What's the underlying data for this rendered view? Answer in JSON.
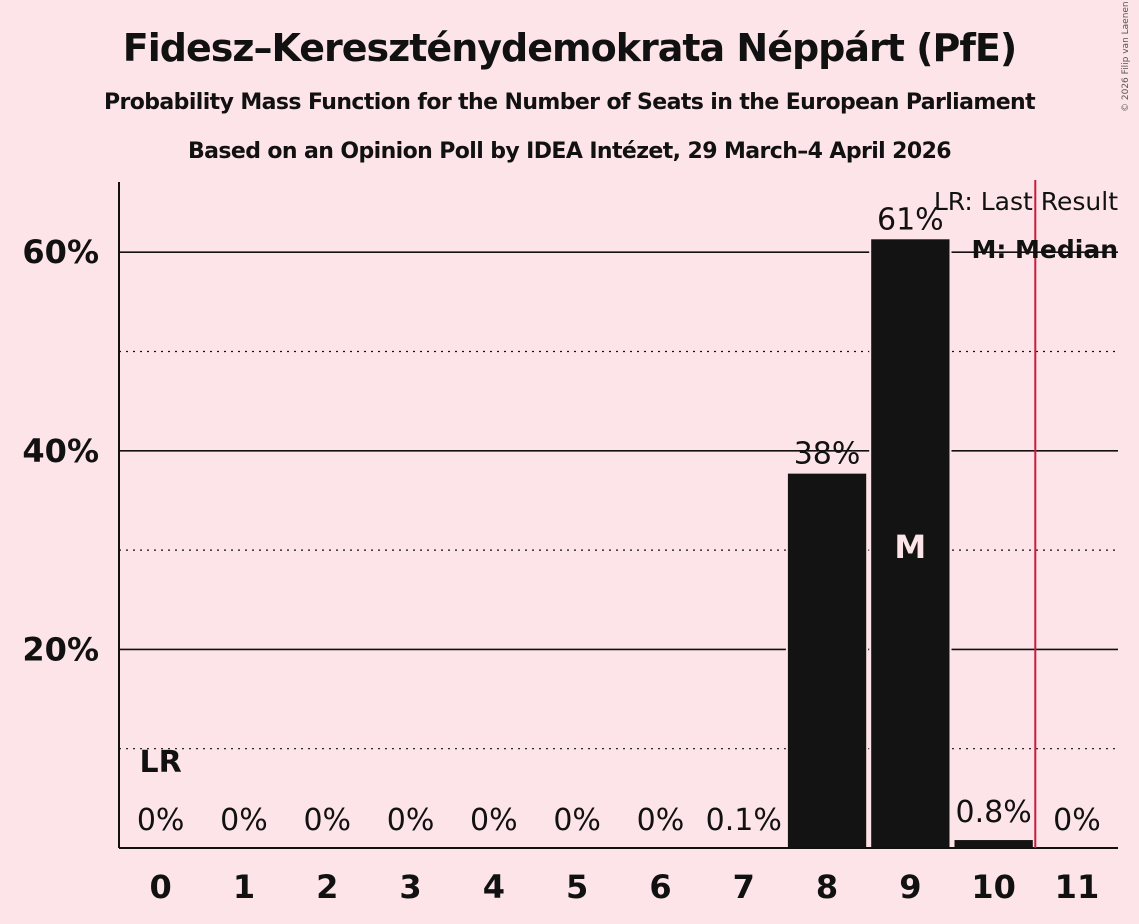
{
  "header": {
    "title": "Fidesz–Kereszténydemokrata Néppárt (PfE)",
    "subtitle": "Probability Mass Function for the Number of Seats in the European Parliament",
    "subtitle2": "Based on an Opinion Poll by IDEA Intézet, 29 March–4 April 2026",
    "copyright": "© 2026 Filip van Laenen"
  },
  "legend": {
    "lr": "LR: Last Result",
    "m": "M: Median"
  },
  "markers": {
    "last_result_label": "LR",
    "last_result_seat": 0,
    "median_label": "M",
    "median_seat": 9,
    "red_line_after_seat": 10
  },
  "colors": {
    "background": "#fce4e8",
    "bar": "#131313",
    "red_line": "#cc1a3a",
    "text": "#111111"
  },
  "chart_data": {
    "type": "bar",
    "title": "Fidesz–Kereszténydemokrata Néppárt (PfE)",
    "subtitle": "Probability Mass Function for the Number of Seats in the European Parliament",
    "xlabel": "",
    "ylabel": "",
    "categories": [
      "0",
      "1",
      "2",
      "3",
      "4",
      "5",
      "6",
      "7",
      "8",
      "9",
      "10",
      "11"
    ],
    "values": [
      0,
      0,
      0,
      0,
      0,
      0,
      0,
      0.1,
      37.7,
      61.3,
      0.8,
      0
    ],
    "value_labels": [
      "0%",
      "0%",
      "0%",
      "0%",
      "0%",
      "0%",
      "0%",
      "0.1%",
      "38%",
      "61%",
      "0.8%",
      "0%"
    ],
    "yticks": [
      20,
      40,
      60
    ],
    "ytick_labels": [
      "20%",
      "40%",
      "60%"
    ],
    "minor_gridlines": [
      10,
      30,
      50
    ],
    "ylim": [
      0,
      67
    ],
    "grid": true,
    "legend_position": "top-right"
  }
}
